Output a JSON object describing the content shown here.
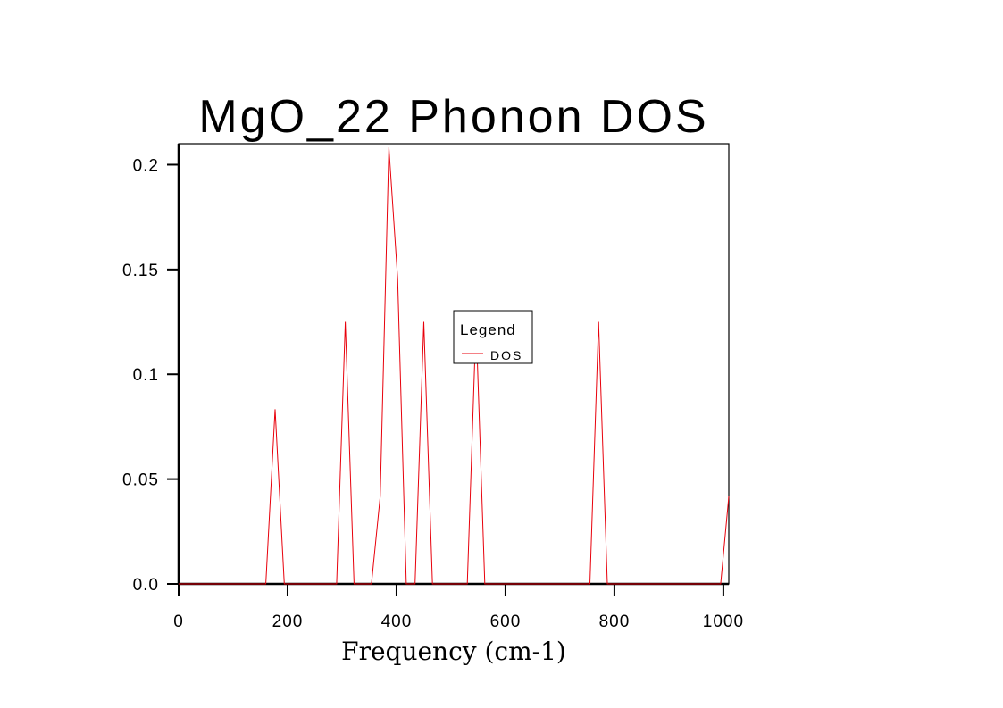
{
  "chart_data": {
    "type": "line",
    "title": "MgO_22 Phonon DOS",
    "xlabel": "Frequency (cm-1)",
    "ylabel": "",
    "xlim": [
      0,
      1010
    ],
    "ylim": [
      0,
      0.21
    ],
    "x_ticks": [
      0,
      200,
      400,
      600,
      800,
      1000
    ],
    "x_tick_labels": [
      "0",
      "200",
      "400",
      "600",
      "800",
      "1000"
    ],
    "y_ticks": [
      0,
      0.05,
      0.1,
      0.15,
      0.2
    ],
    "y_tick_labels": [
      "0.0",
      "0.05",
      "0.1",
      "0.15",
      "0.2"
    ],
    "grid": false,
    "legend": {
      "title": "Legend",
      "position": "center"
    },
    "series": [
      {
        "name": "DOS",
        "color": "#e8000b",
        "x": [
          0,
          160,
          177,
          194,
          290,
          306,
          322,
          354,
          370,
          386,
          402,
          418,
          434,
          450,
          466,
          530,
          546,
          562,
          755,
          771,
          787,
          995,
          1010
        ],
        "y": [
          0,
          0,
          0.0833,
          0,
          0,
          0.125,
          0,
          0,
          0.0417,
          0.2083,
          0.1458,
          0,
          0,
          0.125,
          0,
          0,
          0.125,
          0,
          0,
          0.125,
          0,
          0,
          0.0417
        ]
      }
    ]
  }
}
